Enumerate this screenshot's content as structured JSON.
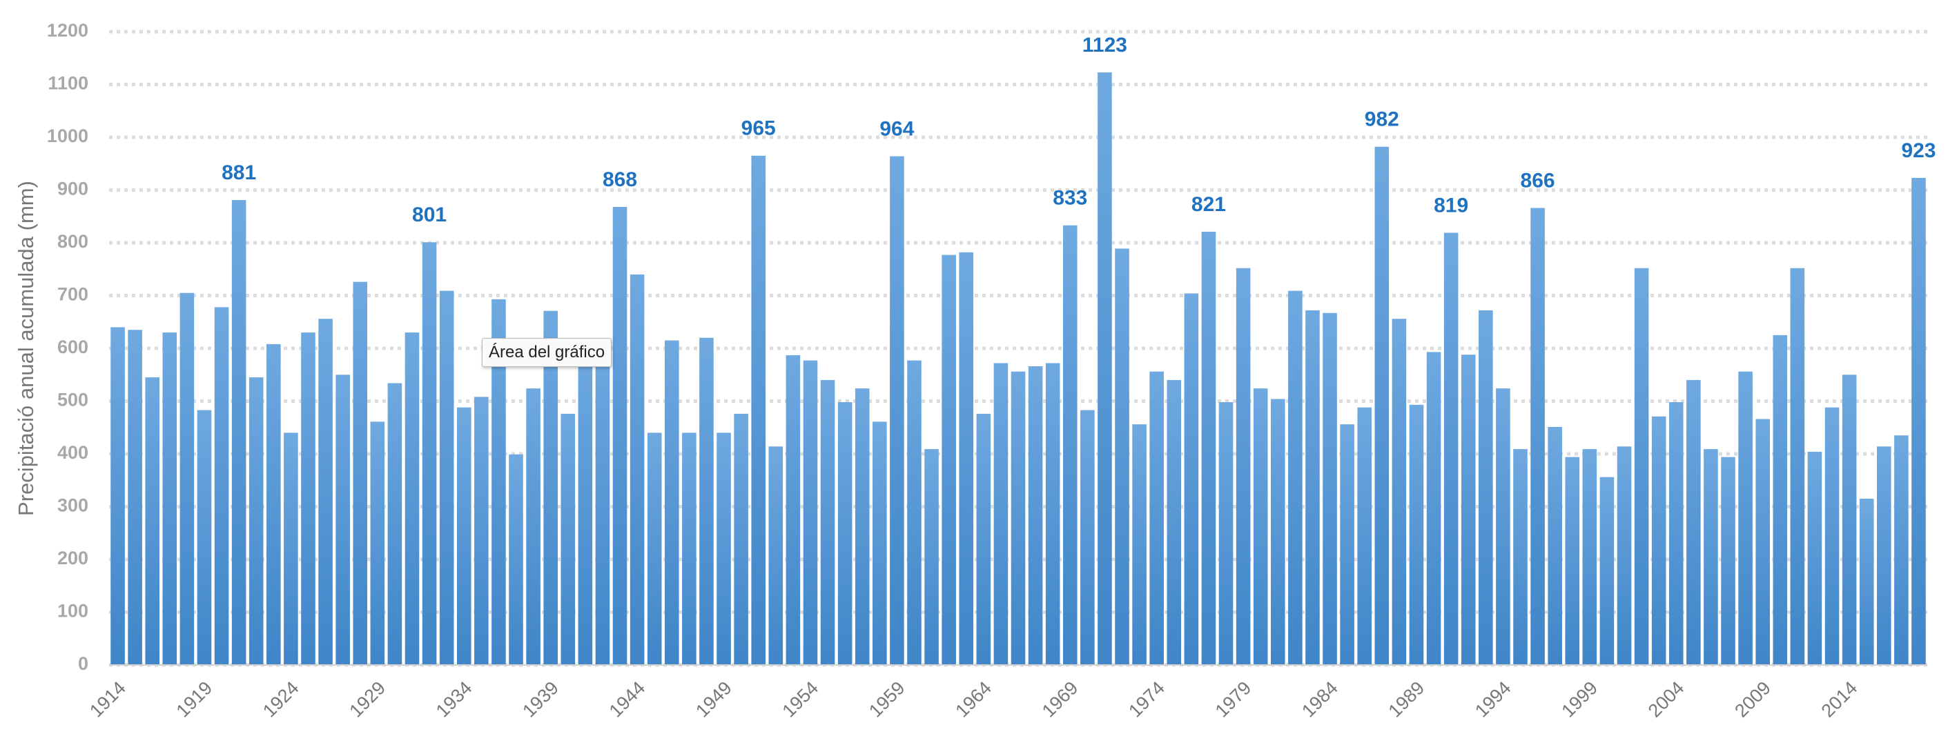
{
  "chart_data": {
    "type": "bar",
    "y_label": "Precipitació anual acumulada (mm)",
    "tooltip": "Área del gráfico",
    "color": "#5a9bd8",
    "grid": true,
    "ylim": [
      0,
      1200
    ],
    "yticks": [
      0,
      100,
      200,
      300,
      400,
      500,
      600,
      700,
      800,
      900,
      1000,
      1100,
      1200
    ],
    "categories": [
      "1914",
      null,
      null,
      null,
      null,
      "1919",
      null,
      null,
      null,
      null,
      "1924",
      null,
      null,
      null,
      null,
      "1929",
      null,
      null,
      null,
      null,
      "1934",
      null,
      null,
      null,
      null,
      "1939",
      null,
      null,
      null,
      null,
      "1944",
      null,
      null,
      null,
      null,
      "1949",
      null,
      null,
      null,
      null,
      "1954",
      null,
      null,
      null,
      null,
      "1959",
      null,
      null,
      null,
      null,
      "1964",
      null,
      null,
      null,
      null,
      "1969",
      null,
      null,
      null,
      null,
      "1974",
      null,
      null,
      null,
      null,
      "1979",
      null,
      null,
      null,
      null,
      "1984",
      null,
      null,
      null,
      null,
      "1989",
      null,
      null,
      null,
      null,
      "1994",
      null,
      null,
      null,
      null,
      "1999",
      null,
      null,
      null,
      null,
      "2004",
      null,
      null,
      null,
      null,
      "2009",
      null,
      null,
      null,
      null,
      "2014",
      null,
      null,
      null,
      null
    ],
    "values": [
      640,
      635,
      545,
      630,
      705,
      483,
      678,
      881,
      545,
      608,
      440,
      630,
      656,
      550,
      726,
      461,
      534,
      630,
      801,
      709,
      488,
      508,
      693,
      399,
      524,
      671,
      476,
      600,
      613,
      868,
      740,
      440,
      615,
      440,
      620,
      440,
      476,
      965,
      414,
      587,
      577,
      540,
      498,
      524,
      461,
      964,
      577,
      409,
      777,
      782,
      476,
      572,
      556,
      566,
      572,
      833,
      483,
      1123,
      789,
      456,
      556,
      540,
      704,
      821,
      498,
      752,
      524,
      504,
      709,
      672,
      667,
      456,
      488,
      982,
      656,
      493,
      593,
      819,
      588,
      672,
      524,
      409,
      866,
      451,
      394,
      409,
      356,
      414,
      752,
      471,
      498,
      540,
      409,
      394,
      556,
      466,
      625,
      752,
      404,
      488,
      550,
      315,
      414,
      435,
      923
    ],
    "value_labels": [
      null,
      null,
      null,
      null,
      null,
      null,
      null,
      "881",
      null,
      null,
      null,
      null,
      null,
      null,
      null,
      null,
      null,
      null,
      "801",
      null,
      null,
      null,
      null,
      null,
      null,
      null,
      null,
      null,
      null,
      "868",
      null,
      null,
      null,
      null,
      null,
      null,
      null,
      "965",
      null,
      null,
      null,
      null,
      null,
      null,
      null,
      "964",
      null,
      null,
      null,
      null,
      null,
      null,
      null,
      null,
      null,
      "833",
      null,
      "1123",
      null,
      null,
      null,
      null,
      null,
      "821",
      null,
      null,
      null,
      null,
      null,
      null,
      null,
      null,
      null,
      "982",
      null,
      null,
      null,
      "819",
      null,
      null,
      null,
      null,
      "866",
      null,
      null,
      null,
      null,
      null,
      null,
      null,
      null,
      null,
      null,
      null,
      null,
      null,
      null,
      null,
      null,
      null,
      null,
      null,
      null,
      null,
      "923"
    ]
  }
}
